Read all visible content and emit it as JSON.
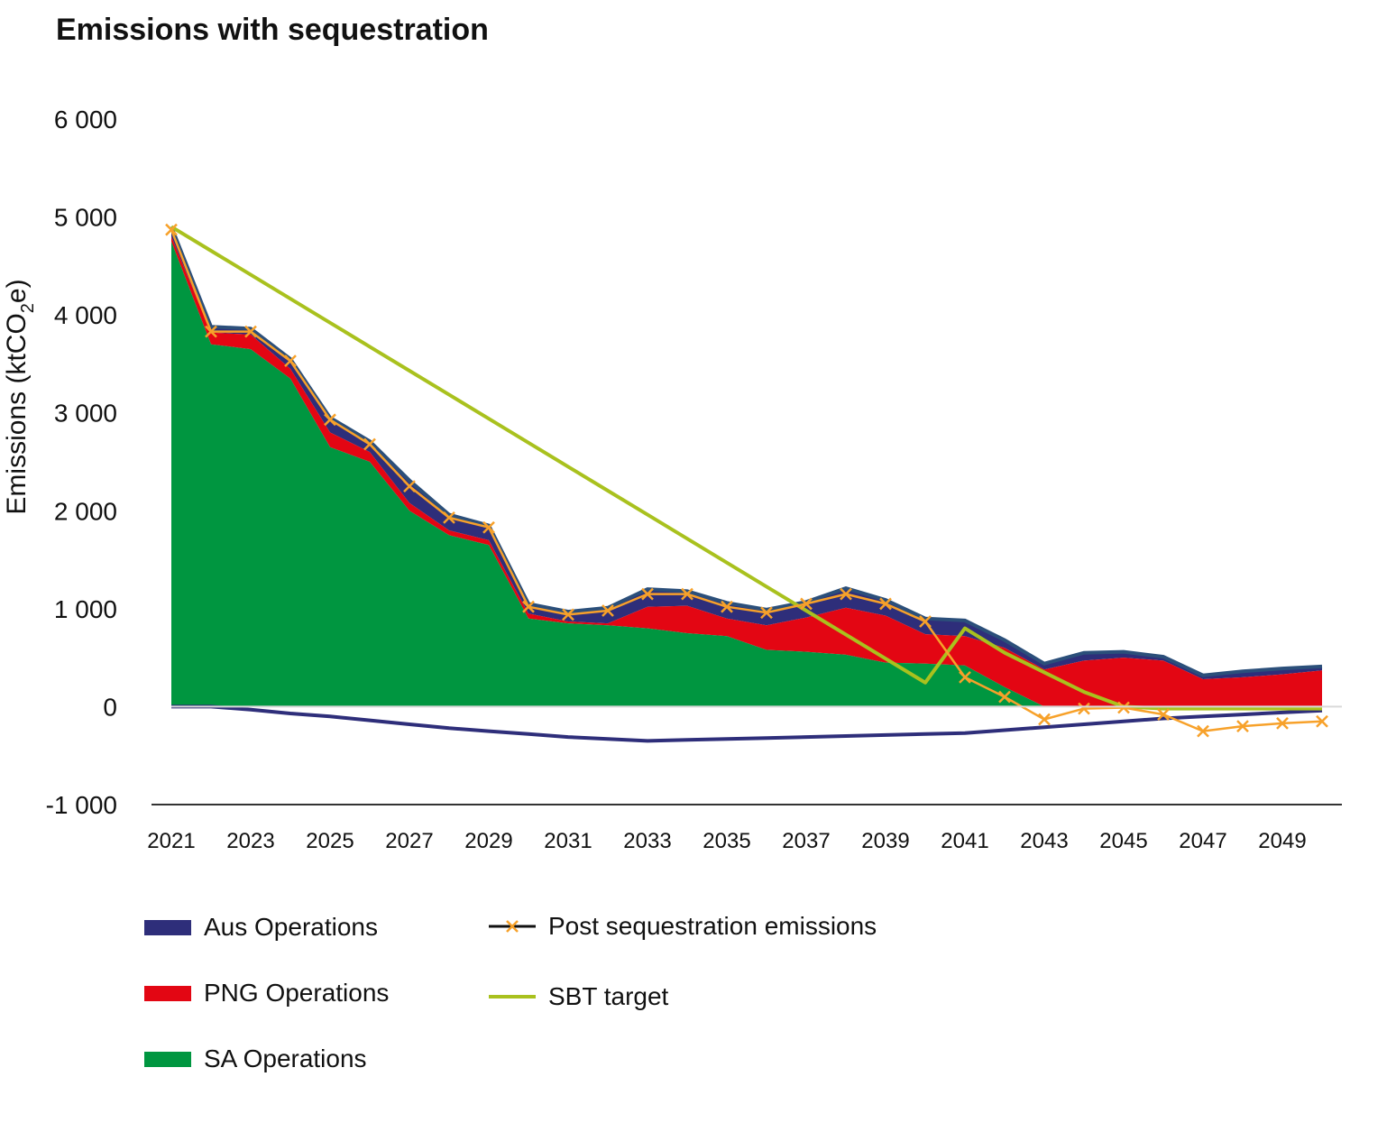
{
  "chart_data": {
    "type": "area",
    "title": "Emissions with sequestration",
    "ylabel_main": "Emissions (ktCO",
    "ylabel_sub": "2",
    "ylabel_end": "e)",
    "xlabel": "",
    "ylim": [
      -1000,
      6000
    ],
    "yticks": [
      6000,
      5000,
      4000,
      3000,
      2000,
      1000,
      0,
      -1000
    ],
    "ytick_labels": [
      "6 000",
      "5 000",
      "4 000",
      "3 000",
      "2 000",
      "1 000",
      "0",
      "-1 000"
    ],
    "x": [
      2021,
      2022,
      2023,
      2024,
      2025,
      2026,
      2027,
      2028,
      2029,
      2030,
      2031,
      2032,
      2033,
      2034,
      2035,
      2036,
      2037,
      2038,
      2039,
      2040,
      2041,
      2042,
      2043,
      2044,
      2045,
      2046,
      2047,
      2048,
      2049,
      2050
    ],
    "xtick_labels": [
      "2021",
      "2023",
      "2025",
      "2027",
      "2029",
      "2031",
      "2033",
      "2035",
      "2037",
      "2039",
      "2041",
      "2043",
      "2045",
      "2047",
      "2049"
    ],
    "colors": {
      "aus": "#2e2e7a",
      "png": "#e30613",
      "sa": "#009640",
      "post": "#f7a12a",
      "sbt": "#a9c11e",
      "sequestration": "#2e2e7a",
      "axis": "#333333"
    },
    "series": [
      {
        "name": "SA Operations",
        "key": "sa",
        "type": "area",
        "values": [
          4750,
          3700,
          3650,
          3350,
          2650,
          2500,
          2000,
          1750,
          1650,
          900,
          850,
          830,
          800,
          750,
          720,
          580,
          560,
          530,
          450,
          440,
          420,
          200,
          0,
          0,
          0,
          0,
          0,
          0,
          0,
          0
        ]
      },
      {
        "name": "PNG Operations",
        "key": "png",
        "type": "area",
        "values": [
          50,
          120,
          150,
          100,
          150,
          100,
          80,
          50,
          50,
          50,
          20,
          20,
          220,
          280,
          180,
          250,
          350,
          480,
          480,
          300,
          300,
          400,
          380,
          470,
          500,
          470,
          280,
          300,
          330,
          370
        ]
      },
      {
        "name": "Aus Operations",
        "key": "aus",
        "type": "area",
        "values": [
          100,
          60,
          60,
          100,
          150,
          110,
          230,
          160,
          150,
          100,
          100,
          160,
          180,
          150,
          160,
          160,
          160,
          200,
          160,
          160,
          160,
          80,
          60,
          80,
          60,
          40,
          40,
          60,
          60,
          40
        ]
      },
      {
        "name": "Post sequestration emissions",
        "key": "post",
        "type": "line",
        "values": [
          4870,
          3830,
          3830,
          3530,
          2930,
          2680,
          2250,
          1930,
          1830,
          1020,
          940,
          980,
          1150,
          1150,
          1020,
          960,
          1050,
          1150,
          1050,
          870,
          300,
          100,
          -130,
          -20,
          -10,
          -80,
          -250,
          -200,
          -170,
          -150
        ]
      },
      {
        "name": "SBT target",
        "key": "sbt",
        "type": "line",
        "values": [
          4900,
          4655,
          4410,
          4165,
          3920,
          3675,
          3430,
          3185,
          2940,
          2695,
          2450,
          2205,
          1960,
          1715,
          1470,
          1225,
          980,
          735,
          490,
          245,
          800,
          550,
          350,
          150,
          0,
          -20,
          -20,
          -20,
          -20,
          -20
        ]
      },
      {
        "name": "Sequestration",
        "key": "sequestration",
        "type": "line",
        "values": [
          0,
          0,
          -30,
          -70,
          -100,
          -140,
          -180,
          -220,
          -250,
          -280,
          -310,
          -330,
          -350,
          -340,
          -330,
          -320,
          -310,
          -300,
          -290,
          -280,
          -270,
          -240,
          -210,
          -180,
          -150,
          -120,
          -100,
          -80,
          -60,
          -40
        ]
      }
    ],
    "legend": [
      {
        "label": "Aus Operations",
        "key": "aus",
        "kind": "area"
      },
      {
        "label": "PNG Operations",
        "key": "png",
        "kind": "area"
      },
      {
        "label": "SA Operations",
        "key": "sa",
        "kind": "area"
      },
      {
        "label": "Post sequestration emissions",
        "key": "post",
        "kind": "marker-line"
      },
      {
        "label": "SBT target",
        "key": "sbt",
        "kind": "line"
      }
    ]
  }
}
